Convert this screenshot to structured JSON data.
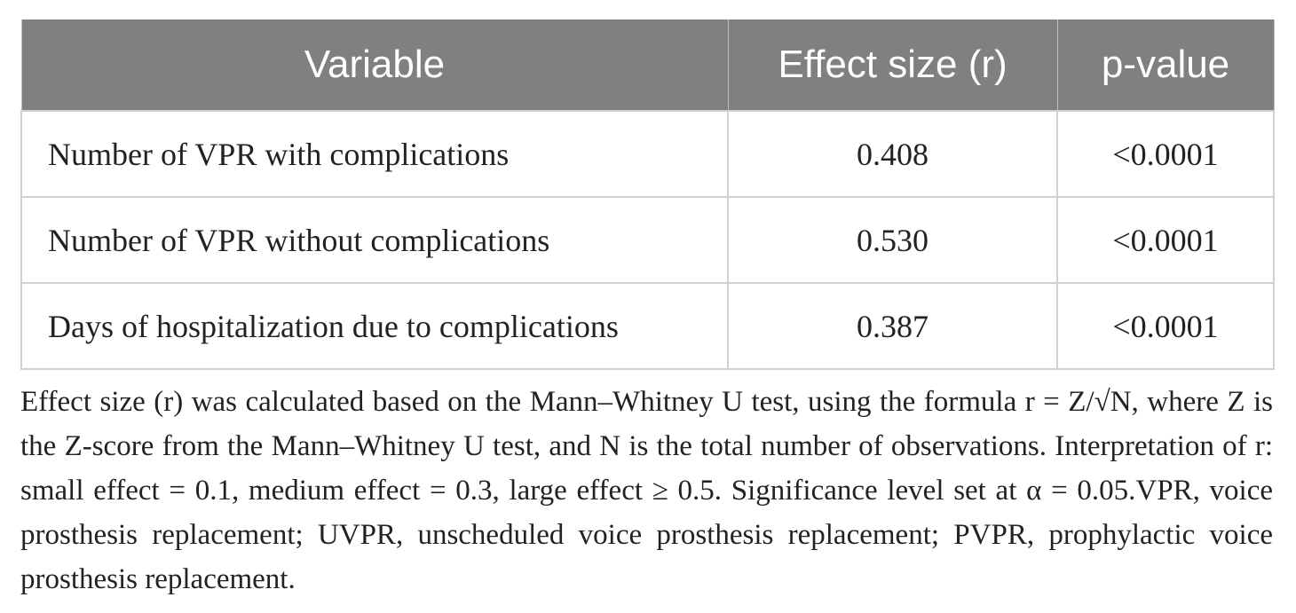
{
  "table": {
    "headers": [
      "Variable",
      "Effect size (r)",
      "p-value"
    ],
    "rows": [
      {
        "variable": "Number of VPR with complications",
        "effect_size": "0.408",
        "p_value": "<0.0001"
      },
      {
        "variable": "Number of VPR without complications",
        "effect_size": "0.530",
        "p_value": "<0.0001"
      },
      {
        "variable": "Days of hospitalization due to complications",
        "effect_size": "0.387",
        "p_value": "<0.0001"
      }
    ]
  },
  "footnote": "Effect size (r) was calculated based on the Mann–Whitney U test, using the formula r = Z/√N, where Z is the Z-score from the Mann–Whitney U test, and N is the total number of observations. Interpretation of r: small effect = 0.1, medium effect = 0.3, large effect ≥ 0.5. Significance level set at α = 0.05.VPR, voice prosthesis replacement; UVPR, unscheduled voice prosthesis replacement; PVPR, prophylactic voice prosthesis replacement."
}
